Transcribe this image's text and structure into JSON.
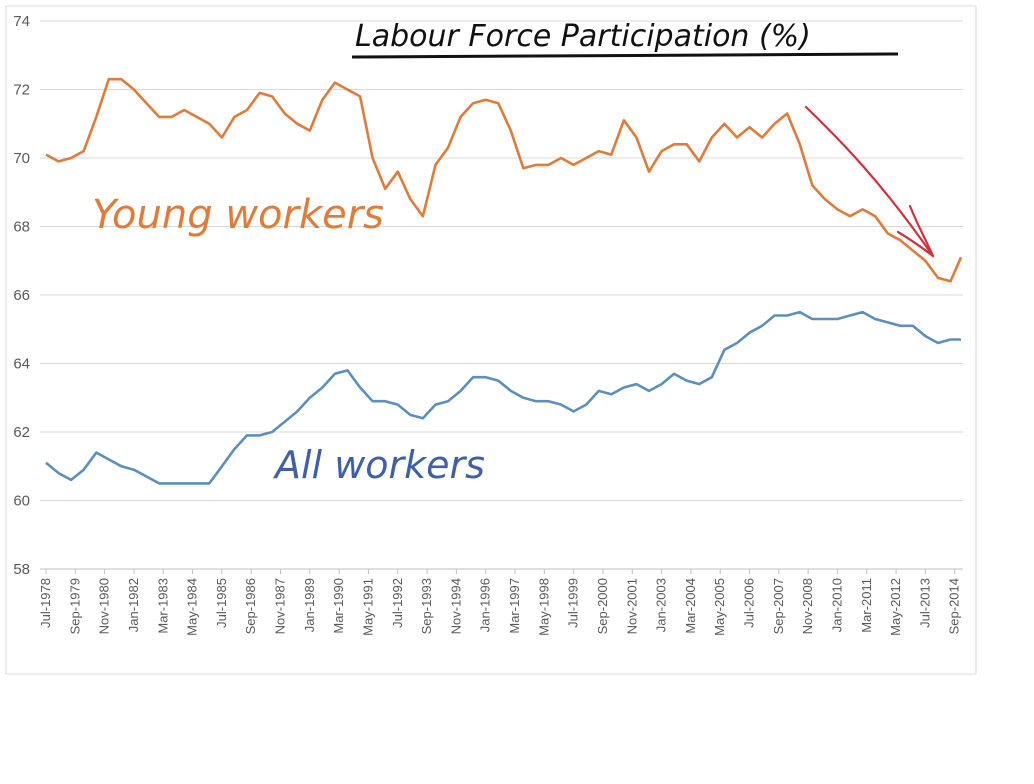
{
  "chart_data": {
    "type": "line",
    "title": "Labour Force Participation (%)",
    "ylim": [
      58,
      74
    ],
    "yticks": [
      58,
      60,
      62,
      64,
      66,
      68,
      70,
      72,
      74
    ],
    "grid": true,
    "x_tick_labels": [
      "Jul-1978",
      "Sep-1979",
      "Nov-1980",
      "Jan-1982",
      "Mar-1983",
      "May-1984",
      "Jul-1985",
      "Sep-1986",
      "Nov-1987",
      "Jan-1989",
      "Mar-1990",
      "May-1991",
      "Jul-1992",
      "Sep-1993",
      "Nov-1994",
      "Jan-1996",
      "Mar-1997",
      "May-1998",
      "Jul-1999",
      "Sep-2000",
      "Nov-2001",
      "Jan-2003",
      "Mar-2004",
      "May-2005",
      "Jul-2006",
      "Sep-2007",
      "Nov-2008",
      "Jan-2010",
      "Mar-2011",
      "May-2012",
      "Jul-2013",
      "Sep-2014"
    ],
    "x_points": [
      "Jul-1978",
      "Jan-1979",
      "Jul-1979",
      "Jan-1980",
      "Jul-1980",
      "Jan-1981",
      "Jul-1981",
      "Jan-1982",
      "Jul-1982",
      "Jan-1983",
      "Jul-1983",
      "Jan-1984",
      "Jul-1984",
      "Jan-1985",
      "Jul-1985",
      "Jan-1986",
      "Jul-1986",
      "Jan-1987",
      "Jul-1987",
      "Jan-1988",
      "Jul-1988",
      "Jan-1989",
      "Jul-1989",
      "Jan-1990",
      "Jul-1990",
      "Jan-1991",
      "Jul-1991",
      "Jan-1992",
      "Jul-1992",
      "Jan-1993",
      "Jul-1993",
      "Jan-1994",
      "Jul-1994",
      "Jan-1995",
      "Jul-1995",
      "Jan-1996",
      "Jul-1996",
      "Jan-1997",
      "Jul-1997",
      "Jan-1998",
      "Jul-1998",
      "Jan-1999",
      "Jul-1999",
      "Jan-2000",
      "Jul-2000",
      "Jan-2001",
      "Jul-2001",
      "Jan-2002",
      "Jul-2002",
      "Jan-2003",
      "Jul-2003",
      "Jan-2004",
      "Jul-2004",
      "Jan-2005",
      "Jul-2005",
      "Jan-2006",
      "Jul-2006",
      "Jan-2007",
      "Jul-2007",
      "Jan-2008",
      "Jul-2008",
      "Jan-2009",
      "Jul-2009",
      "Jan-2010",
      "Jul-2010",
      "Jan-2011",
      "Jul-2011",
      "Jan-2012",
      "Jul-2012",
      "Jan-2013",
      "Jul-2013",
      "Jan-2014",
      "Jul-2014",
      "Dec-2014"
    ],
    "series": [
      {
        "name": "Young workers",
        "color": "#E07B39",
        "values": [
          70.1,
          69.9,
          70.0,
          70.2,
          71.2,
          72.3,
          72.3,
          72.0,
          71.6,
          71.2,
          71.2,
          71.4,
          71.2,
          71.0,
          70.6,
          71.2,
          71.4,
          71.9,
          71.8,
          71.3,
          71.0,
          70.8,
          71.7,
          72.2,
          72.0,
          71.8,
          70.0,
          69.1,
          69.6,
          68.8,
          68.3,
          69.8,
          70.3,
          71.2,
          71.6,
          71.7,
          71.6,
          70.8,
          69.7,
          69.8,
          69.8,
          70.0,
          69.8,
          70.0,
          70.2,
          70.1,
          71.1,
          70.6,
          69.6,
          70.2,
          70.4,
          70.4,
          69.9,
          70.6,
          71.0,
          70.6,
          70.9,
          70.6,
          71.0,
          71.3,
          70.4,
          69.2,
          68.8,
          68.5,
          68.3,
          68.5,
          68.3,
          67.8,
          67.6,
          67.3,
          67.0,
          66.5,
          66.4,
          67.1
        ]
      },
      {
        "name": "All workers",
        "color": "#5B8FC0",
        "values": [
          61.1,
          60.8,
          60.6,
          60.9,
          61.4,
          61.2,
          61.0,
          60.9,
          60.7,
          60.5,
          60.5,
          60.5,
          60.5,
          60.5,
          61.0,
          61.5,
          61.9,
          61.9,
          62.0,
          62.3,
          62.6,
          63.0,
          63.3,
          63.7,
          63.8,
          63.3,
          62.9,
          62.9,
          62.8,
          62.5,
          62.4,
          62.8,
          62.9,
          63.2,
          63.6,
          63.6,
          63.5,
          63.2,
          63.0,
          62.9,
          62.9,
          62.8,
          62.6,
          62.8,
          63.2,
          63.1,
          63.3,
          63.4,
          63.2,
          63.4,
          63.7,
          63.5,
          63.4,
          63.6,
          64.4,
          64.6,
          64.9,
          65.1,
          65.4,
          65.4,
          65.5,
          65.3,
          65.3,
          65.3,
          65.4,
          65.5,
          65.3,
          65.2,
          65.1,
          65.1,
          64.8,
          64.6,
          64.7,
          64.7
        ]
      }
    ],
    "annotations": {
      "young_label": "Young workers",
      "all_label": "All workers"
    }
  }
}
